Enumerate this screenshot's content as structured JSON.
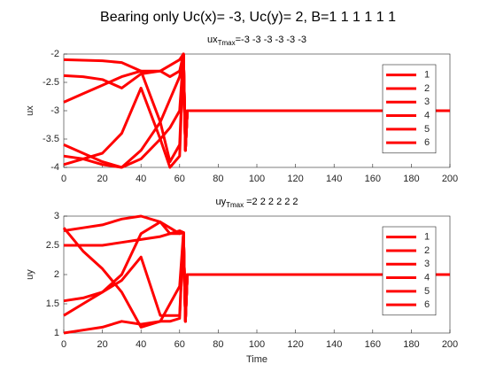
{
  "figure_title": "Bearing only   Uc(x)= -3, Uc(y)= 2, B=1  1  1  1  1  1",
  "chart_data": [
    {
      "type": "line",
      "subtitle": {
        "base": "ux",
        "sub": "Tmax",
        "rest": "=-3 -3 -3 -3 -3 -3"
      },
      "ylabel": "ux",
      "x": [
        0,
        10,
        20,
        30,
        40,
        50,
        55,
        60,
        62,
        63,
        64,
        200
      ],
      "xlim": [
        0,
        200
      ],
      "xticks": [
        0,
        20,
        40,
        60,
        80,
        100,
        120,
        140,
        160,
        180,
        200
      ],
      "ylim": [
        -4,
        -2
      ],
      "yticks": [
        -4,
        -3.5,
        -3,
        -2.5,
        -2
      ],
      "legend": "upper right",
      "series": [
        {
          "name": "1",
          "color": "#ff0000",
          "values": [
            -2.1,
            -2.11,
            -2.12,
            -2.15,
            -2.3,
            -3.2,
            -3.9,
            -3.6,
            -2.0,
            -3.7,
            -3,
            -3
          ]
        },
        {
          "name": "2",
          "color": "#ff0000",
          "values": [
            -2.38,
            -2.4,
            -2.45,
            -2.6,
            -2.35,
            -2.3,
            -2.4,
            -2.3,
            -2.0,
            -3.7,
            -3,
            -3
          ]
        },
        {
          "name": "3",
          "color": "#ff0000",
          "values": [
            -2.85,
            -2.7,
            -2.55,
            -2.4,
            -2.3,
            -2.3,
            -2.2,
            -2.1,
            -2.0,
            -3.7,
            -3,
            -3
          ]
        },
        {
          "name": "4",
          "color": "#ff0000",
          "values": [
            -3.6,
            -3.75,
            -3.9,
            -4.0,
            -3.7,
            -3.2,
            -2.8,
            -2.4,
            -2.0,
            -3.7,
            -3,
            -3
          ]
        },
        {
          "name": "5",
          "color": "#ff0000",
          "values": [
            -3.8,
            -3.85,
            -3.95,
            -4.0,
            -3.85,
            -3.5,
            -3.3,
            -3.0,
            -2.0,
            -3.7,
            -3,
            -3
          ]
        },
        {
          "name": "6",
          "color": "#ff0000",
          "values": [
            -3.95,
            -3.85,
            -3.75,
            -3.4,
            -2.6,
            -3.5,
            -4.0,
            -3.8,
            -2.0,
            -3.7,
            -3,
            -3
          ]
        }
      ]
    },
    {
      "type": "line",
      "subtitle": {
        "base": "uy",
        "sub": "Tmax",
        "rest": " =2  2  2  2  2  2"
      },
      "ylabel": "uy",
      "xlabel": "Time",
      "x": [
        0,
        10,
        20,
        30,
        40,
        50,
        55,
        60,
        62,
        63,
        64,
        200
      ],
      "xlim": [
        0,
        200
      ],
      "xticks": [
        0,
        20,
        40,
        60,
        80,
        100,
        120,
        140,
        160,
        180,
        200
      ],
      "ylim": [
        1,
        3
      ],
      "yticks": [
        1,
        1.5,
        2,
        2.5,
        3
      ],
      "legend": "upper right",
      "series": [
        {
          "name": "1",
          "color": "#ff0000",
          "values": [
            2.75,
            2.8,
            2.85,
            2.95,
            3.0,
            2.9,
            2.7,
            2.75,
            2.72,
            1.2,
            2,
            2
          ]
        },
        {
          "name": "2",
          "color": "#ff0000",
          "values": [
            2.5,
            2.5,
            2.5,
            2.55,
            2.6,
            2.65,
            2.7,
            2.7,
            2.72,
            1.2,
            2,
            2
          ]
        },
        {
          "name": "3",
          "color": "#ff0000",
          "values": [
            1.3,
            1.5,
            1.7,
            2.0,
            2.7,
            2.9,
            2.8,
            2.7,
            2.72,
            1.2,
            2,
            2
          ]
        },
        {
          "name": "4",
          "color": "#ff0000",
          "values": [
            1.55,
            1.6,
            1.7,
            1.9,
            2.3,
            1.3,
            1.3,
            1.3,
            2.72,
            1.2,
            2,
            2
          ]
        },
        {
          "name": "5",
          "color": "#ff0000",
          "values": [
            1.0,
            1.05,
            1.1,
            1.2,
            1.15,
            1.2,
            1.2,
            1.25,
            2.72,
            1.2,
            2,
            2
          ]
        },
        {
          "name": "6",
          "color": "#ff0000",
          "values": [
            2.8,
            2.4,
            2.1,
            1.7,
            1.1,
            1.2,
            1.5,
            1.8,
            2.72,
            1.2,
            2,
            2
          ]
        }
      ]
    }
  ]
}
